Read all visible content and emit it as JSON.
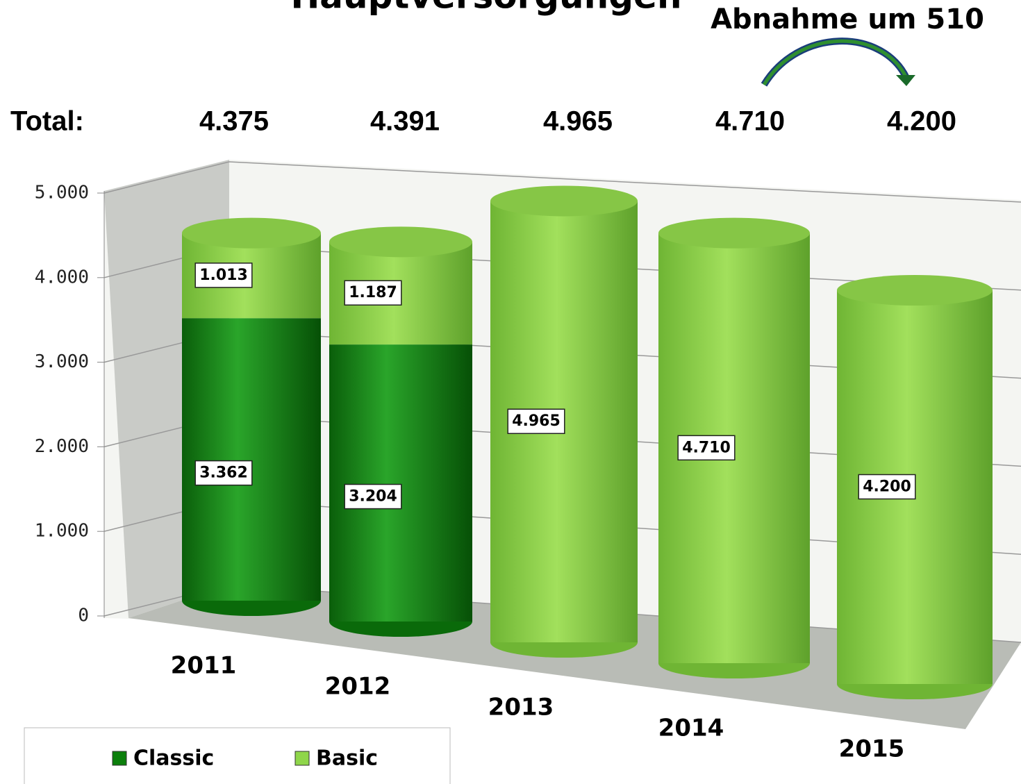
{
  "chart_data": {
    "type": "bar3d",
    "stacked": true,
    "title": "Hauptversorgungen",
    "annotation": "Abnahme um 510",
    "categories": [
      "2011",
      "2012",
      "2013",
      "2014",
      "2015"
    ],
    "series": [
      {
        "name": "Classic",
        "color": "#0b7f0b",
        "values": [
          3362,
          3204,
          0,
          0,
          0
        ],
        "value_labels": [
          "3.362",
          "3.204",
          "0",
          "0",
          "0"
        ]
      },
      {
        "name": "Basic",
        "color": "#8fd64a",
        "values": [
          1013,
          1187,
          4965,
          4710,
          4200
        ],
        "value_labels": [
          "1.013",
          "1.187",
          "4.965",
          "4.710",
          "4.200"
        ]
      }
    ],
    "totals": {
      "label": "Total:",
      "values": [
        4375,
        4391,
        4965,
        4710,
        4200
      ],
      "value_labels": [
        "4.375",
        "4.391",
        "4.965",
        "4.710",
        "4.200"
      ]
    },
    "ylim": [
      0,
      5000
    ],
    "yticks": [
      0,
      {
        "value": 1000,
        "label": "1.000"
      },
      {
        "value": 2000,
        "label": "2.000"
      },
      {
        "value": 3000,
        "label": "3.000"
      },
      {
        "value": 4000,
        "label": "4.000"
      },
      {
        "value": 5000,
        "label": "5.000"
      }
    ],
    "grid": true,
    "legend": "bottom-left"
  }
}
